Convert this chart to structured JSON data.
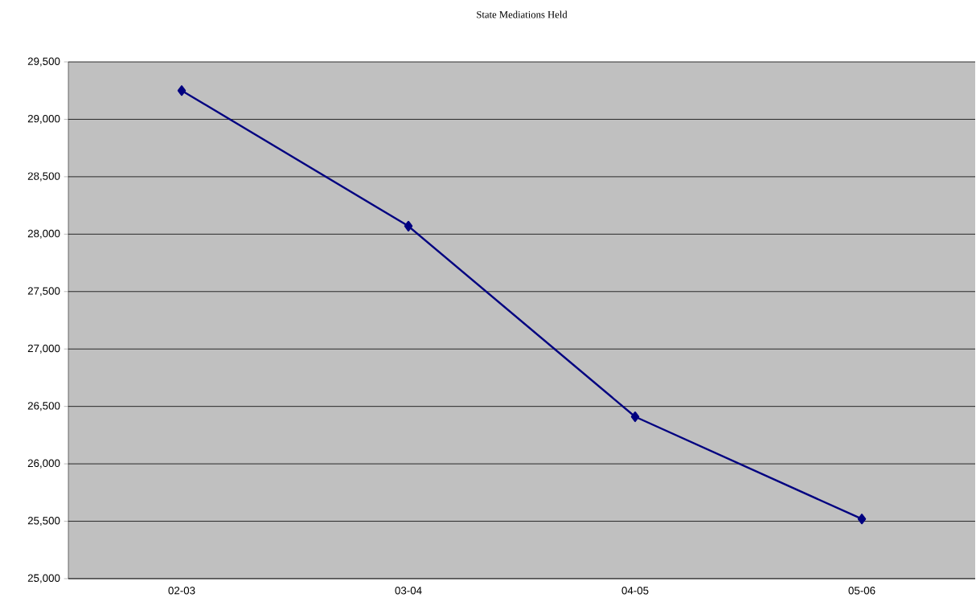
{
  "chart_data": {
    "type": "line",
    "title": "State Mediations Held",
    "categories": [
      "02-03",
      "03-04",
      "04-05",
      "05-06"
    ],
    "series": [
      {
        "color": "#000080",
        "values": [
          29250,
          28070,
          26410,
          25520
        ]
      }
    ],
    "ylim": [
      25000,
      29500
    ],
    "yticks": [
      {
        "value": 25000,
        "label": "25,000"
      },
      {
        "value": 25500,
        "label": "25,500"
      },
      {
        "value": 26000,
        "label": "26,000"
      },
      {
        "value": 26500,
        "label": "26,500"
      },
      {
        "value": 27000,
        "label": "27,000"
      },
      {
        "value": 27500,
        "label": "27,500"
      },
      {
        "value": 28000,
        "label": "28,000"
      },
      {
        "value": 28500,
        "label": "28,500"
      },
      {
        "value": 29000,
        "label": "29,000"
      },
      {
        "value": 29500,
        "label": "29,500"
      }
    ],
    "grid": "y",
    "marker": "diamond",
    "line_style": "solid"
  }
}
